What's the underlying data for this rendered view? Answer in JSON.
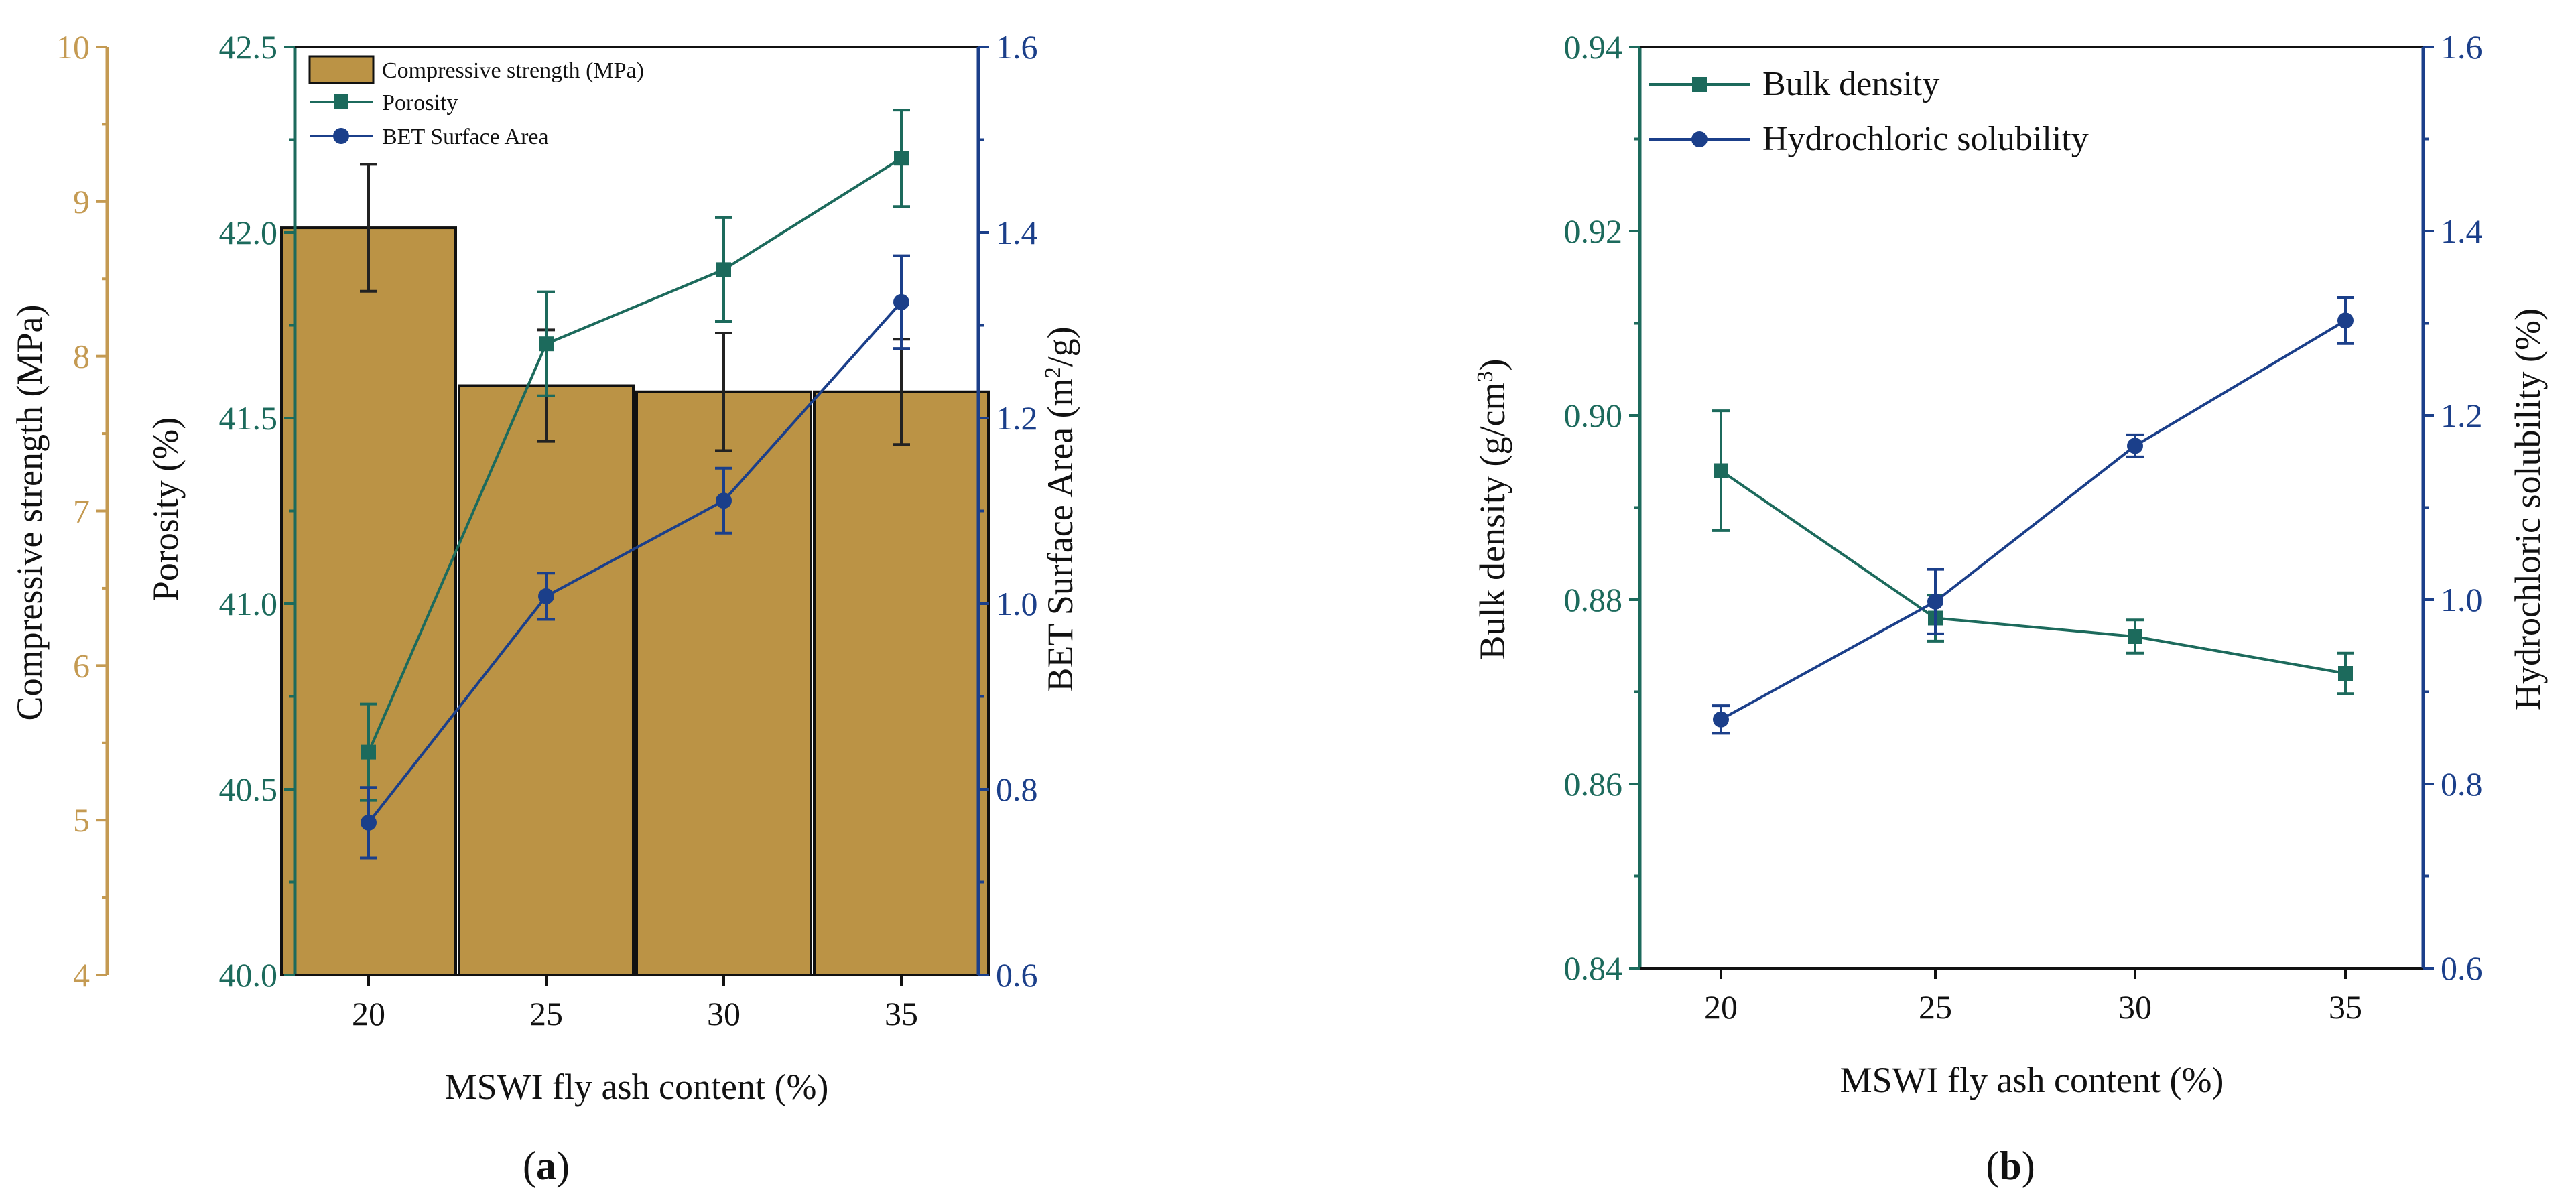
{
  "colors": {
    "bar_fill": "#BB9345",
    "strength_axis": "#C49A52",
    "porosity": "#1C6A5C",
    "bet": "#1B3F8A",
    "hcl": "#1B3F8A",
    "frame": "#1C6A5C",
    "text": "#111111"
  },
  "chart_data": [
    {
      "id": "a",
      "type": "bar+line",
      "panel_label": "a",
      "xlabel": "MSWI fly ash content (%)",
      "categories": [
        "20",
        "25",
        "30",
        "35"
      ],
      "y_left_outer": {
        "label": "Compressive strength (MPa)",
        "ticks": [
          "4",
          "5",
          "6",
          "7",
          "8",
          "9",
          "10"
        ],
        "range": [
          4,
          10
        ]
      },
      "y_left_inner": {
        "label": "Porosity (%)",
        "ticks": [
          "40.0",
          "40.5",
          "41.0",
          "41.5",
          "42.0",
          "42.5"
        ],
        "range": [
          40.0,
          42.5
        ]
      },
      "y_right": {
        "label": "BET Surface Area (m²/g)",
        "label_main": "BET Surface Area (m",
        "label_sup": "2",
        "label_end": "/g)",
        "ticks": [
          "0.6",
          "0.8",
          "1.0",
          "1.2",
          "1.4",
          "1.6"
        ],
        "range": [
          0.6,
          1.6
        ]
      },
      "legend": {
        "position": "top-left",
        "entries": [
          "Compressive strength (MPa)",
          "Porosity",
          "BET Surface Area"
        ]
      },
      "series": [
        {
          "name": "Compressive strength (MPa)",
          "kind": "bar",
          "axis": "y_left_outer",
          "values": [
            8.83,
            7.81,
            7.77,
            7.77
          ],
          "errors": [
            0.41,
            0.36,
            0.38,
            0.34
          ]
        },
        {
          "name": "Porosity",
          "kind": "line-square",
          "axis": "y_left_inner",
          "values": [
            40.6,
            41.7,
            41.9,
            42.2
          ],
          "errors": [
            0.13,
            0.14,
            0.14,
            0.13
          ]
        },
        {
          "name": "BET Surface Area",
          "kind": "line-circle",
          "axis": "y_right",
          "values": [
            0.764,
            1.008,
            1.111,
            1.325
          ],
          "errors": [
            0.038,
            0.025,
            0.035,
            0.05
          ]
        }
      ]
    },
    {
      "id": "b",
      "type": "line",
      "panel_label": "b",
      "xlabel": "MSWI fly ash content (%)",
      "categories": [
        "20",
        "25",
        "30",
        "35"
      ],
      "y_left": {
        "label": "Bulk density (g/cm³)",
        "label_main": "Bulk density (g/cm",
        "label_sup": "3",
        "label_end": ")",
        "ticks": [
          "0.84",
          "0.86",
          "0.88",
          "0.90",
          "0.92",
          "0.94"
        ],
        "range": [
          0.84,
          0.94
        ]
      },
      "y_right": {
        "label": "Hydrochloric solubility (%)",
        "ticks": [
          "0.6",
          "0.8",
          "1.0",
          "1.2",
          "1.4",
          "1.6"
        ],
        "range": [
          0.6,
          1.6
        ]
      },
      "legend": {
        "position": "top-left",
        "entries": [
          "Bulk density",
          "Hydrochloric solubility"
        ]
      },
      "series": [
        {
          "name": "Bulk density",
          "kind": "line-square",
          "axis": "y_left",
          "values": [
            0.894,
            0.878,
            0.876,
            0.872
          ],
          "errors": [
            0.0065,
            0.0025,
            0.0018,
            0.0022
          ]
        },
        {
          "name": "Hydrochloric solubility",
          "kind": "line-circle",
          "axis": "y_right",
          "values": [
            0.87,
            0.998,
            1.167,
            1.303
          ],
          "errors": [
            0.015,
            0.035,
            0.012,
            0.025
          ]
        }
      ]
    }
  ]
}
